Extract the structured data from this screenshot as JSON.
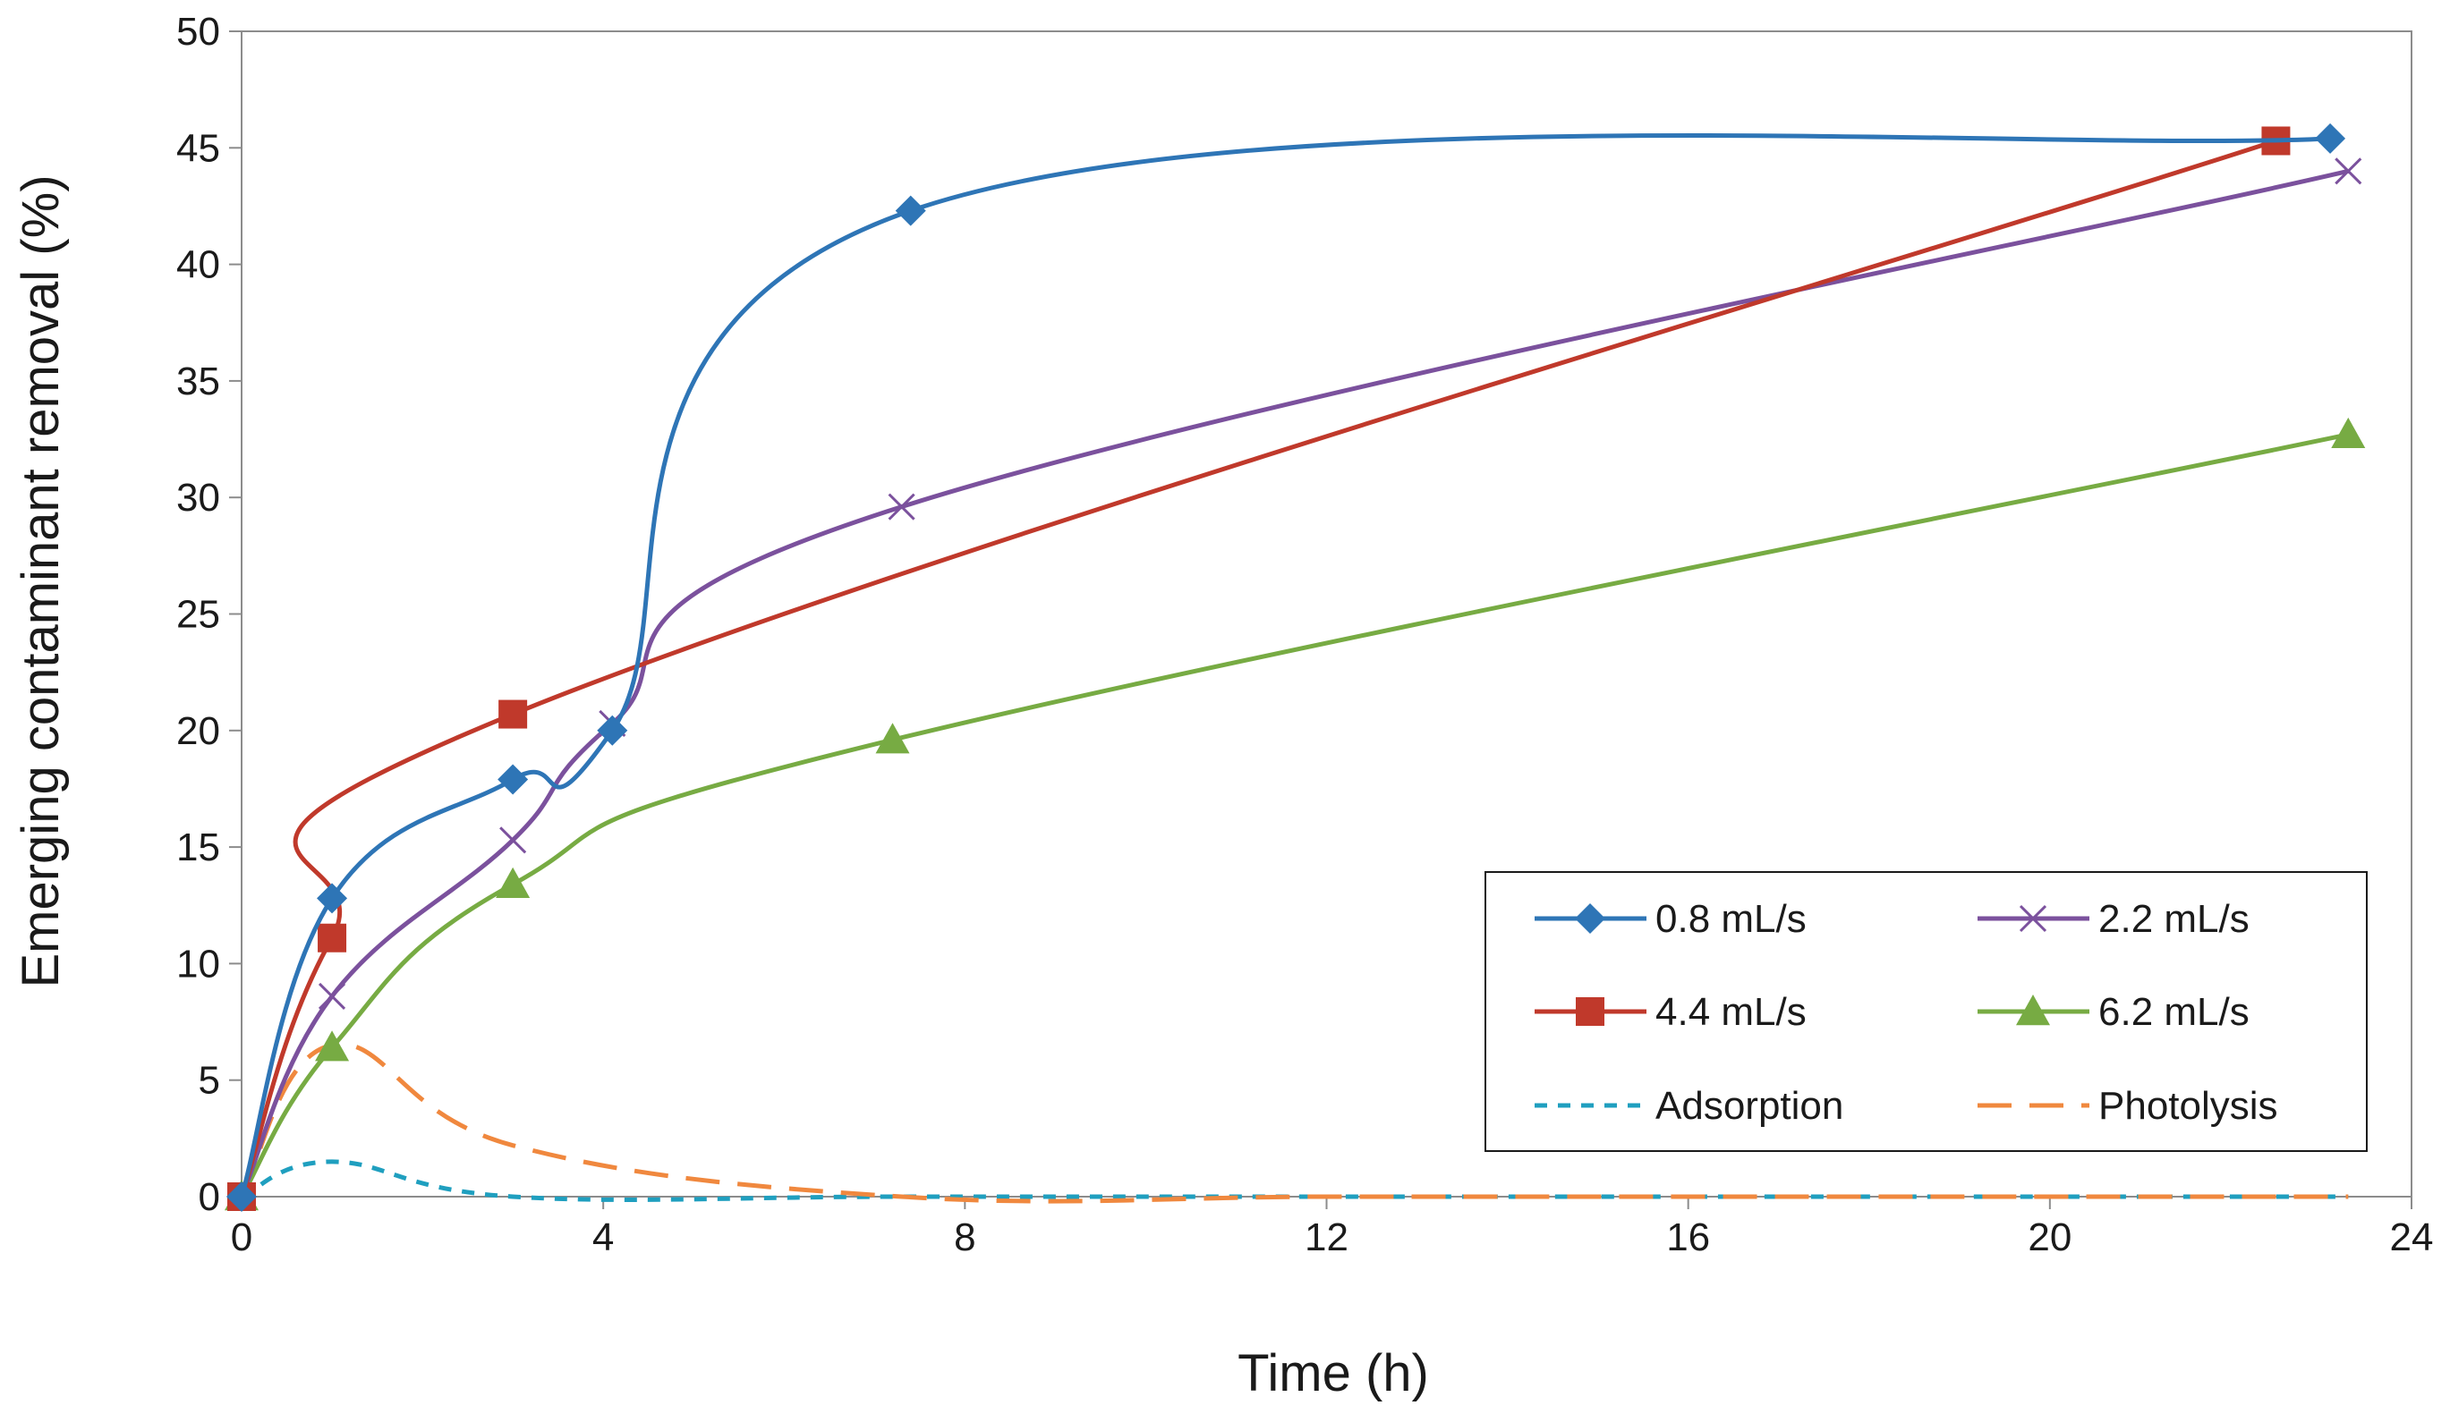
{
  "chart_data": {
    "type": "line",
    "title": "",
    "xlabel": "Time (h)",
    "ylabel": "Emerging contaminant removal  (%)",
    "xlim": [
      0,
      24
    ],
    "ylim": [
      0,
      50
    ],
    "xticks": [
      "0",
      "4",
      "8",
      "12",
      "16",
      "20",
      "24"
    ],
    "yticks": [
      "0",
      "5",
      "10",
      "15",
      "20",
      "25",
      "30",
      "35",
      "40",
      "45",
      "50"
    ],
    "grid": false,
    "legend_position": "bottom-right",
    "series": [
      {
        "name": "0.8 mL/s",
        "color": "#2e75b6",
        "marker": "diamond",
        "dash": "solid",
        "smooth": true,
        "x": [
          0,
          1,
          3,
          4.1,
          7.4,
          23.1
        ],
        "y": [
          0,
          12.8,
          17.9,
          20.0,
          42.3,
          45.4
        ]
      },
      {
        "name": "2.2 mL/s",
        "color": "#7b519d",
        "marker": "x",
        "dash": "solid",
        "smooth": true,
        "x": [
          0,
          1,
          3,
          4.1,
          7.3,
          23.3
        ],
        "y": [
          0,
          8.6,
          15.3,
          20.3,
          29.6,
          44.0
        ]
      },
      {
        "name": "4.4 mL/s",
        "color": "#c0392b",
        "marker": "square",
        "dash": "solid",
        "smooth": true,
        "x": [
          0,
          1,
          3,
          22.5
        ],
        "y": [
          0,
          11.1,
          20.7,
          45.3
        ]
      },
      {
        "name": "6.2 mL/s",
        "color": "#77ab43",
        "marker": "triangle",
        "dash": "solid",
        "smooth": true,
        "x": [
          0,
          1,
          3,
          7.2,
          23.3
        ],
        "y": [
          0,
          6.4,
          13.4,
          19.6,
          32.7
        ]
      },
      {
        "name": "Adsorption",
        "color": "#1f9fbf",
        "marker": "none",
        "dash": "short",
        "smooth": true,
        "x": [
          0,
          1,
          3,
          7.3,
          12,
          16,
          20,
          23.3
        ],
        "y": [
          0,
          1.5,
          0,
          0,
          0,
          0,
          0,
          0
        ]
      },
      {
        "name": "Photolysis",
        "color": "#f0883e",
        "marker": "none",
        "dash": "long",
        "smooth": true,
        "x": [
          0,
          1,
          3,
          7.3,
          12,
          16,
          20,
          23.3
        ],
        "y": [
          0,
          6.5,
          2.2,
          0,
          0,
          0,
          0,
          0
        ]
      }
    ]
  }
}
